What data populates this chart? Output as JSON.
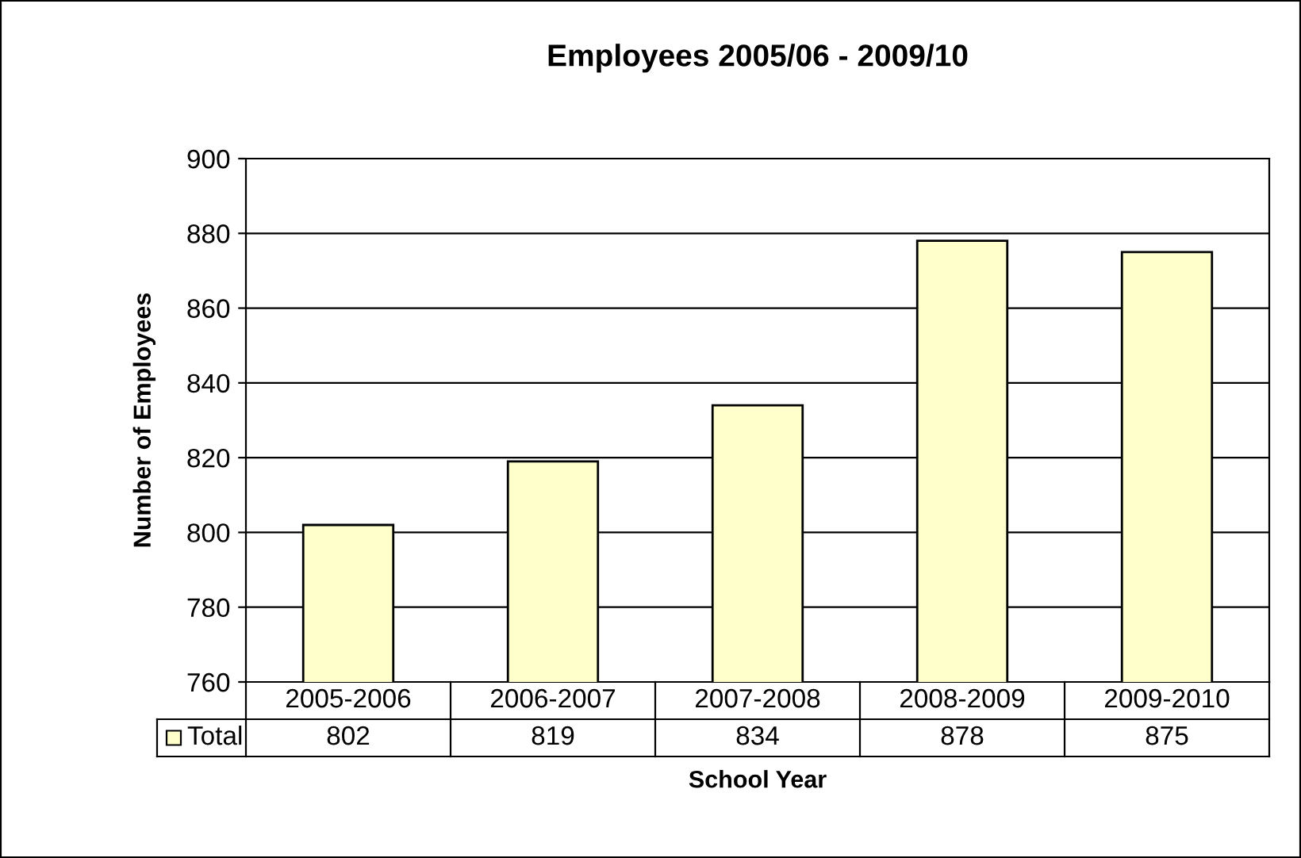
{
  "chart_data": {
    "type": "bar",
    "title": "Employees 2005/06 - 2009/10",
    "xlabel": "School Year",
    "ylabel": "Number of Employees",
    "categories": [
      "2005-2006",
      "2006-2007",
      "2007-2008",
      "2008-2009",
      "2009-2010"
    ],
    "series": [
      {
        "name": "Total",
        "color": "#ffffcc",
        "values": [
          802,
          819,
          834,
          878,
          875
        ]
      }
    ],
    "ylim": [
      760,
      900
    ],
    "yticks": [
      760,
      780,
      800,
      820,
      840,
      860,
      880,
      900
    ],
    "grid": "y",
    "legend": "bottom left",
    "data_labels": true
  }
}
